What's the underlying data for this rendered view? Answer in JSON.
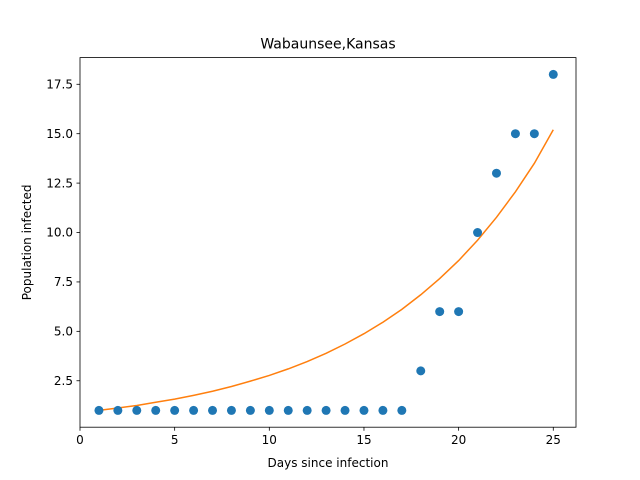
{
  "chart_data": {
    "type": "scatter",
    "title": "Wabaunsee,Kansas",
    "xlabel": "Days since infection",
    "ylabel": "Population infected",
    "xlim": [
      0,
      26.2
    ],
    "ylim": [
      0.15,
      18.85
    ],
    "xticks": [
      0,
      5,
      10,
      15,
      20,
      25
    ],
    "xtick_labels": [
      "0",
      "5",
      "10",
      "15",
      "20",
      "25"
    ],
    "yticks": [
      2.5,
      5.0,
      7.5,
      10.0,
      12.5,
      15.0,
      17.5
    ],
    "ytick_labels": [
      "2.5",
      "5.0",
      "7.5",
      "10.0",
      "12.5",
      "15.0",
      "17.5"
    ],
    "grid": false,
    "series": [
      {
        "kind": "scatter",
        "color": "#1f77b4",
        "x": [
          1,
          2,
          3,
          4,
          5,
          6,
          7,
          8,
          9,
          10,
          11,
          12,
          13,
          14,
          15,
          16,
          17,
          18,
          19,
          20,
          21,
          22,
          23,
          24,
          25
        ],
        "y": [
          1,
          1,
          1,
          1,
          1,
          1,
          1,
          1,
          1,
          1,
          1,
          1,
          1,
          1,
          1,
          1,
          1,
          3,
          6,
          6,
          10,
          13,
          15,
          15,
          18
        ]
      },
      {
        "kind": "line",
        "color": "#ff7f0e",
        "x": [
          1,
          2,
          3,
          4,
          5,
          6,
          7,
          8,
          9,
          10,
          11,
          12,
          13,
          14,
          15,
          16,
          17,
          18,
          19,
          20,
          21,
          22,
          23,
          24,
          25
        ],
        "y": [
          1.0,
          1.12,
          1.25,
          1.41,
          1.57,
          1.76,
          1.97,
          2.21,
          2.48,
          2.77,
          3.1,
          3.47,
          3.89,
          4.36,
          4.88,
          5.46,
          6.11,
          6.85,
          7.67,
          8.58,
          9.61,
          10.77,
          12.06,
          13.5,
          15.2
        ]
      }
    ]
  }
}
